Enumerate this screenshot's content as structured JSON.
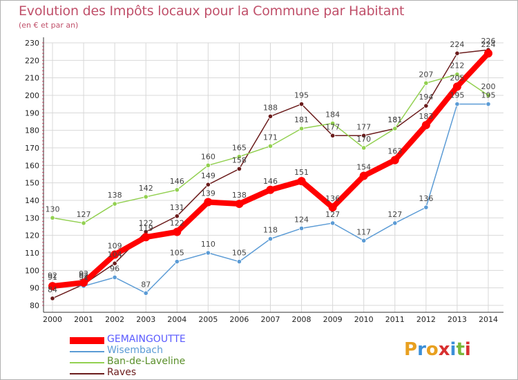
{
  "header": {
    "title": "Evolution des Impôts locaux pour la Commune par Habitant",
    "subtitle": "(en € et par an)"
  },
  "colors": {
    "title": "#c0506a",
    "grid": "#d8d8d8",
    "axis": "#c0506a"
  },
  "chart_data": {
    "type": "line",
    "title": "Evolution des Impôts locaux pour la Commune par Habitant",
    "subtitle": "(en € et par an)",
    "xlabel": "",
    "ylabel": "",
    "x": [
      2000,
      2001,
      2002,
      2003,
      2004,
      2005,
      2006,
      2007,
      2008,
      2009,
      2010,
      2011,
      2012,
      2013,
      2014
    ],
    "ylim": [
      80,
      230
    ],
    "yticks": [
      80,
      90,
      100,
      110,
      120,
      130,
      140,
      150,
      160,
      170,
      180,
      190,
      200,
      210,
      220,
      230
    ],
    "grid": true,
    "legend_position": "bottom-left",
    "series": [
      {
        "name": "GEMAINGOUTTE",
        "color": "#ff0000",
        "values": [
          91,
          93,
          109,
          119,
          122,
          139,
          138,
          146,
          151,
          136,
          154,
          163,
          183,
          205,
          224
        ]
      },
      {
        "name": "Wisembach",
        "color": "#5b9bd5",
        "values": [
          92,
          91,
          96,
          87,
          105,
          110,
          105,
          118,
          124,
          127,
          117,
          127,
          136,
          195,
          195
        ]
      },
      {
        "name": "Ban-de-Laveline",
        "color": "#92d050",
        "values": [
          130,
          127,
          138,
          142,
          146,
          160,
          165,
          171,
          181,
          184,
          170,
          181,
          207,
          212,
          200
        ]
      },
      {
        "name": "Raves",
        "color": "#6b1c1c",
        "values": [
          84,
          92,
          104,
          122,
          131,
          149,
          158,
          188,
          195,
          177,
          177,
          181,
          194,
          224,
          226
        ]
      }
    ]
  },
  "legend": {
    "items": [
      {
        "label": "GEMAINGOUTTE",
        "color": "#ff0000"
      },
      {
        "label": "Wisembach",
        "color": "#5b9bd5"
      },
      {
        "label": "Ban-de-Laveline",
        "color": "#92d050"
      },
      {
        "label": "Raves",
        "color": "#6b1c1c"
      }
    ]
  },
  "logo": {
    "text": "Proxiti"
  }
}
